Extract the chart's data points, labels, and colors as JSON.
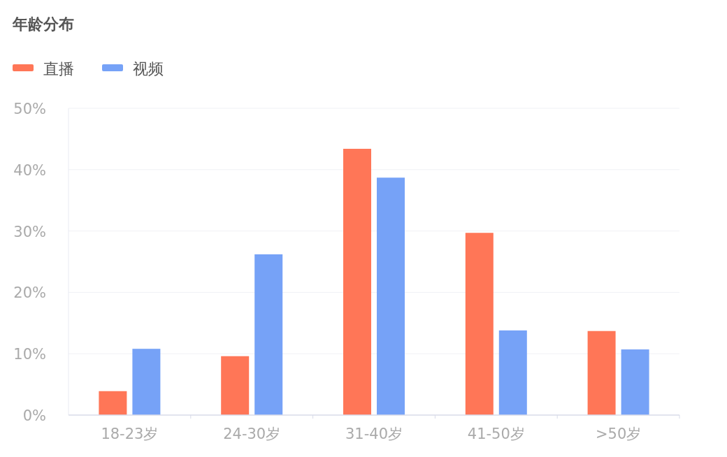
{
  "chart_data": {
    "type": "bar",
    "title": "年龄分布",
    "categories": [
      "18-23岁",
      "24-30岁",
      "31-40岁",
      "41-50岁",
      ">50岁"
    ],
    "series": [
      {
        "name": "直播",
        "color": "#ff7657",
        "values": [
          3.9,
          9.6,
          43.4,
          29.7,
          13.7
        ]
      },
      {
        "name": "视频",
        "color": "#76a2f7",
        "values": [
          10.8,
          26.2,
          38.7,
          13.8,
          10.7
        ]
      }
    ],
    "ylim": [
      0,
      50
    ],
    "yticks": [
      {
        "value": 0,
        "label": "0%"
      },
      {
        "value": 10,
        "label": "10%"
      },
      {
        "value": 20,
        "label": "20%"
      },
      {
        "value": 30,
        "label": "30%"
      },
      {
        "value": 40,
        "label": "40%"
      },
      {
        "value": 50,
        "label": "50%"
      }
    ],
    "grid": "y",
    "legend": "top left"
  }
}
